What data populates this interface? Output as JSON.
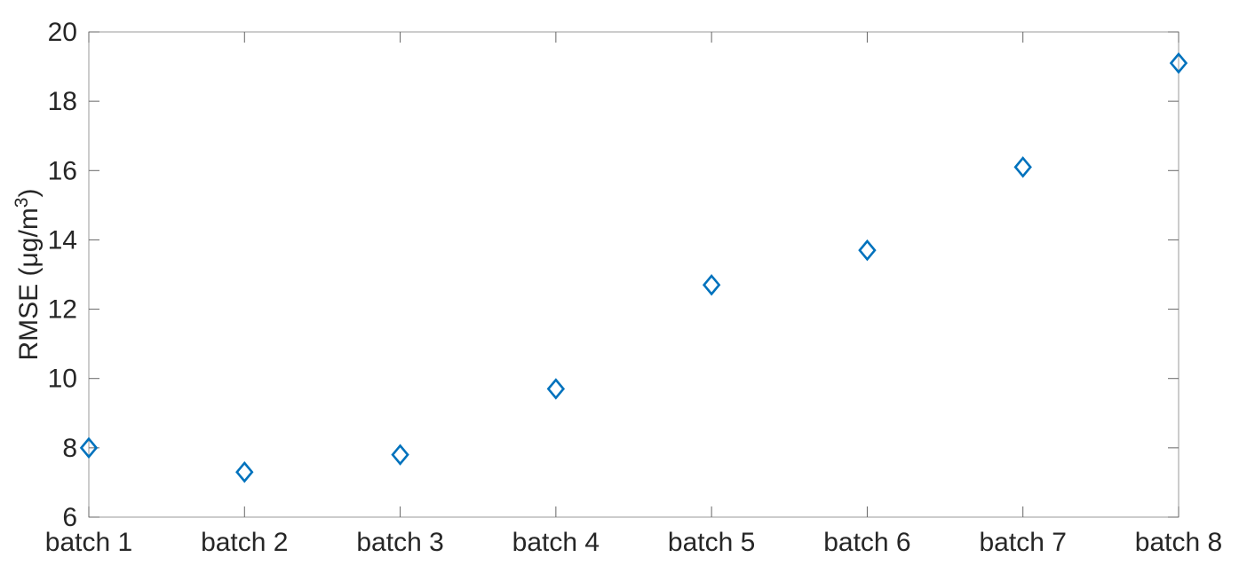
{
  "chart_data": {
    "type": "scatter",
    "title": "",
    "xlabel": "",
    "ylabel": "RMSE (μg/m³)",
    "ylabel_parts": {
      "prefix": "RMSE (μg/m",
      "superscript": "3",
      "suffix": ")"
    },
    "categories": [
      "batch 1",
      "batch 2",
      "batch 3",
      "batch 4",
      "batch 5",
      "batch 6",
      "batch 7",
      "batch 8"
    ],
    "values": [
      8.0,
      7.3,
      7.8,
      9.7,
      12.7,
      13.7,
      16.1,
      19.1
    ],
    "ylim": [
      6,
      20
    ],
    "yticks": [
      6,
      8,
      10,
      12,
      14,
      16,
      18,
      20
    ],
    "grid": false,
    "legend": null,
    "axis_box": true,
    "tick_direction": "in",
    "marker": "diamond-outline",
    "marker_color": "#0072BD"
  },
  "style": {
    "background": "#ffffff",
    "box_color": "#9a9a9a",
    "tick_color": "#666666",
    "text_color": "#262626"
  }
}
